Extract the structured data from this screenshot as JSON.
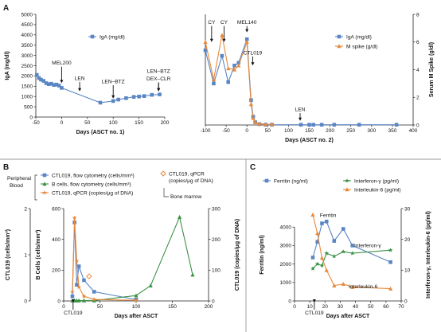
{
  "chart_data": [
    {
      "id": "A1",
      "panel_label": "A",
      "type": "line",
      "xlabel": "Days (ASCT no. 1)",
      "ylabel": "IgA (mg/dl)",
      "xlim": [
        -50,
        200
      ],
      "ylim": [
        0,
        5000
      ],
      "xticks": [
        -50,
        0,
        50,
        100,
        150,
        200
      ],
      "yticks": [
        0,
        500,
        1000,
        1500,
        2000,
        2500,
        3000,
        3500,
        4000,
        4500,
        5000
      ],
      "legend": [
        {
          "name": "IgA (mg/dl)",
          "color": "#5b86c5",
          "marker": "square"
        }
      ],
      "series": [
        {
          "name": "IgA (mg/dl)",
          "color": "#5b86c5",
          "marker": "square",
          "x": [
            -48,
            -44,
            -40,
            -35,
            -30,
            -25,
            -20,
            -15,
            -10,
            -5,
            0,
            75,
            100,
            110,
            125,
            140,
            150,
            160,
            175,
            190
          ],
          "y": [
            2050,
            1900,
            1820,
            1760,
            1650,
            1600,
            1620,
            1560,
            1580,
            1530,
            1420,
            700,
            780,
            850,
            920,
            980,
            1000,
            1020,
            1080,
            1100
          ]
        }
      ],
      "annotations": [
        {
          "text": "MEL200",
          "x": 0,
          "y": 1650,
          "text_y": 2550
        },
        {
          "text": "LEN",
          "x": 35,
          "y": 1250,
          "text_y": 1800
        },
        {
          "text": "LEN–BTZ",
          "x": 100,
          "y": 900,
          "text_y": 1650
        },
        {
          "text": "LEN–BTZ",
          "x": 188,
          "y": 1250,
          "text_y": 2150
        },
        {
          "text": "DEX–CLR",
          "x": 188,
          "y": 1250,
          "text_y": 1780
        }
      ]
    },
    {
      "id": "A2",
      "type": "line",
      "xlabel": "Days (ASCT no. 2)",
      "ylabel_left": "",
      "ylabel_right": "Serum M Spike (g/dl)",
      "xlim": [
        -100,
        400
      ],
      "ylim_left": [
        0,
        8000
      ],
      "ylim_right": [
        0,
        8
      ],
      "xticks": [
        -100,
        -50,
        0,
        50,
        100,
        150,
        200,
        250,
        300,
        350,
        400
      ],
      "yticks_right": [
        0,
        2,
        4,
        6,
        8
      ],
      "legend": [
        {
          "name": "IgA (mg/dl)",
          "color": "#5b86c5",
          "marker": "square"
        },
        {
          "name": "M spike (g/dl)",
          "color": "#e8893a",
          "marker": "triangle"
        }
      ],
      "series": [
        {
          "name": "IgA (mg/dl)",
          "color": "#5b86c5",
          "marker": "square",
          "axis": "left",
          "x": [
            -100,
            -80,
            -60,
            -45,
            -30,
            -20,
            0,
            10,
            15,
            20,
            30,
            45,
            60,
            130,
            150,
            160,
            180,
            210,
            270,
            360
          ],
          "y": [
            5400,
            3000,
            5000,
            3100,
            4300,
            4500,
            6200,
            1800,
            600,
            200,
            60,
            20,
            20,
            20,
            20,
            20,
            20,
            20,
            20,
            20
          ]
        },
        {
          "name": "M spike (g/dl)",
          "color": "#e8893a",
          "marker": "triangle",
          "axis": "right",
          "x": [
            -100,
            -80,
            -60,
            -45,
            -30,
            -20,
            0,
            10,
            15,
            20,
            30,
            45,
            60
          ],
          "y": [
            6.0,
            3.3,
            6.5,
            4.1,
            4.0,
            4.3,
            6.0,
            1.5,
            0.5,
            0.2,
            0.1,
            0.05,
            0.05
          ]
        }
      ],
      "annotations": [
        {
          "text": "CY",
          "x": -85,
          "y": 6000,
          "text_y": 7300
        },
        {
          "text": "CY",
          "x": -55,
          "y": 6000,
          "text_y": 7300
        },
        {
          "text": "MEL140",
          "x": 0,
          "y": 6700,
          "text_y": 7300
        },
        {
          "text": "CTL019",
          "x": 14,
          "y": 4300,
          "text_y": 5100
        },
        {
          "text": "LEN",
          "x": 128,
          "y": 300,
          "text_y": 1000
        }
      ]
    },
    {
      "id": "B",
      "panel_label": "B",
      "type": "line",
      "xlabel": "Days after ASCT",
      "ylabel_left": "CTL019 (cells/mm³)",
      "ylabel_inner": "B Cells (cells/mm³)",
      "ylabel_right": "CTL019 (copies/μg of DNA)",
      "xlim": [
        0,
        200
      ],
      "ylim_left": [
        0,
        2
      ],
      "ylim_inner": [
        0,
        600
      ],
      "ylim_right": [
        0,
        300
      ],
      "xticks": [
        0,
        50,
        100,
        150,
        200
      ],
      "yticks_left": [
        0,
        1,
        2
      ],
      "yticks_inner": [
        0,
        200,
        400,
        600
      ],
      "yticks_right": [
        0,
        100,
        200,
        300
      ],
      "legend_title": "Peripheral Blood",
      "legend": [
        {
          "name": "CTL019, flow cytometry (cells/mm³)",
          "color": "#5b86c5",
          "marker": "square"
        },
        {
          "name": "B cells, flow cytometry (cells/mm³)",
          "color": "#3b9146",
          "marker": "triangle"
        },
        {
          "name": "CTL019, qPCR (copies/μg of DNA)",
          "color": "#e8893a",
          "marker": "star"
        }
      ],
      "legend_right": [
        {
          "name": "CTL019, qPCR (copies/μg of DNA)",
          "color": "#e8893a",
          "marker": "diamond-open"
        }
      ],
      "legend_right_caption": "Bone marrow",
      "series": [
        {
          "name": "CTL019, flow cytometry (cells/mm³)",
          "color": "#5b86c5",
          "marker": "square",
          "axis": "left",
          "x": [
            12,
            15,
            18,
            21,
            28,
            42,
            100
          ],
          "y": [
            0.1,
            1.7,
            0.35,
            0.75,
            0.45,
            0.2,
            0.03
          ]
        },
        {
          "name": "B cells, flow cytometry (cells/mm³)",
          "color": "#3b9146",
          "marker": "triangle",
          "axis": "inner",
          "x": [
            12,
            15,
            18,
            21,
            28,
            42,
            100,
            120,
            160,
            178
          ],
          "y": [
            3,
            3,
            3,
            3,
            3,
            3,
            35,
            100,
            545,
            170
          ]
        },
        {
          "name": "CTL019, qPCR (copies/μg of DNA)",
          "color": "#e8893a",
          "marker": "star",
          "axis": "right",
          "x": [
            12,
            15,
            18,
            21,
            28,
            42,
            100
          ],
          "y": [
            30,
            270,
            130,
            45,
            15,
            5,
            2
          ]
        },
        {
          "name": "CTL019, qPCR (copies/μg of DNA)",
          "color": "#e8893a",
          "marker": "diamond-open",
          "axis": "right",
          "line": false,
          "x": [
            35
          ],
          "y": [
            80
          ]
        }
      ],
      "annotations": [
        {
          "text": "CTL019",
          "x": 13,
          "y": -0.05,
          "text_y": -0.55
        }
      ]
    },
    {
      "id": "C",
      "panel_label": "C",
      "type": "line",
      "xlabel": "Days after ASCT",
      "ylabel_left": "Ferritin (ng/ml)",
      "ylabel_right": "Interferon-γ, Interleukin-6 (pg/ml)",
      "xlim": [
        0,
        70
      ],
      "ylim_left": [
        0,
        5000
      ],
      "ylim_right": [
        0,
        30
      ],
      "xticks": [
        0,
        10,
        20,
        30,
        40,
        50,
        60,
        70
      ],
      "yticks_left": [
        0,
        1000,
        2000,
        3000,
        4000
      ],
      "yticks_right": [
        0,
        10,
        20,
        30
      ],
      "legend": [
        {
          "name": "Ferritin (ng/ml)",
          "color": "#5b86c5",
          "marker": "square"
        },
        {
          "name": "Interferon-γ (pg/ml)",
          "color": "#3b9146",
          "marker": "star"
        },
        {
          "name": "Interleukin-6 (pg/ml)",
          "color": "#e8893a",
          "marker": "triangle"
        }
      ],
      "series": [
        {
          "name": "Ferritin (ng/ml)",
          "color": "#5b86c5",
          "marker": "square",
          "axis": "left",
          "x": [
            12,
            15,
            18,
            21,
            26,
            32,
            38,
            63
          ],
          "y": [
            2350,
            3200,
            4200,
            4300,
            3250,
            3900,
            3000,
            2100
          ]
        },
        {
          "name": "Interferon-γ (pg/ml)",
          "color": "#3b9146",
          "marker": "star",
          "axis": "right",
          "x": [
            12,
            15,
            18,
            21,
            26,
            32,
            38,
            63
          ],
          "y": [
            10.5,
            12,
            11.5,
            15.5,
            14.5,
            16,
            15.5,
            16.5
          ]
        },
        {
          "name": "Interleukin-6 (pg/ml)",
          "color": "#e8893a",
          "marker": "triangle",
          "axis": "right",
          "x": [
            12,
            15,
            18,
            21,
            26,
            32,
            38,
            63
          ],
          "y": [
            28,
            22,
            14,
            10,
            5,
            5.5,
            4.5,
            4
          ]
        }
      ],
      "annotations": [
        {
          "text": "Ferritin",
          "x": 22,
          "y": 4300,
          "text_y": 4550
        },
        {
          "text": "Interferon-γ",
          "x": 48,
          "y": 2900,
          "text_y": 2900
        },
        {
          "text": "Interleukin-6",
          "x": 45,
          "y": 700,
          "text_y": 700
        },
        {
          "text": "CTL019",
          "x": 13,
          "y": 0,
          "text_y": -700
        }
      ]
    }
  ]
}
